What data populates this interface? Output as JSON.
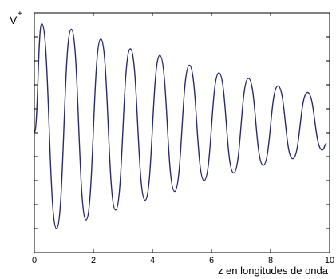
{
  "chart_data": {
    "type": "line",
    "title": "",
    "ylabel": "V",
    "ylabel_superscript": "+",
    "xlabel": "z en longitudes de onda",
    "xlim": [
      0,
      10
    ],
    "xticks": [
      "0",
      "2",
      "4",
      "6",
      "8",
      "10"
    ],
    "yticks_labeled": false,
    "grid": false,
    "legend": "none",
    "line_color": "#2b2b6b",
    "series": [
      {
        "x": [
          0.0,
          0.25,
          0.75,
          1.25,
          1.75,
          2.25,
          2.75,
          3.25,
          3.75,
          4.25,
          4.75,
          5.25,
          5.75,
          6.25,
          6.75,
          7.25,
          7.75,
          8.25,
          8.75,
          9.25,
          9.75,
          9.9
        ],
        "values": [
          0.0,
          1.0,
          -0.88,
          0.95,
          -0.8,
          0.86,
          -0.71,
          0.77,
          -0.62,
          0.71,
          -0.54,
          0.62,
          -0.44,
          0.55,
          -0.37,
          0.5,
          -0.3,
          0.43,
          -0.24,
          0.37,
          -0.16,
          -0.1
        ]
      }
    ]
  }
}
